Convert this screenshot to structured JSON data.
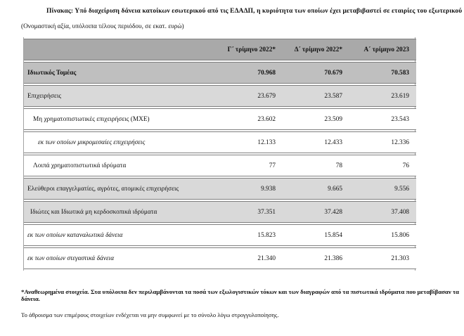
{
  "title": "Πίνακας: Υπό διαχείριση δάνεια κατοίκων εσωτερικού από τις ΕΔΑΔΠ, η κυριότητα των οποίων έχει μεταβιβαστεί σε εταιρίες του εξωτερικού",
  "subtitle": "(Ονομαστική αξία, υπόλοιπα τέλους περιόδου, σε εκατ. ευρώ)",
  "table": {
    "columns": [
      "Γ΄ τρίμηνο 2022*",
      "Δ΄ τρίμηνο 2022*",
      "Α΄ τρίμηνο 2023"
    ],
    "rows": [
      {
        "label": "Ιδιωτικός Τομέας",
        "values": [
          "70.968",
          "70.679",
          "70.583"
        ]
      },
      {
        "label": "Επιχειρήσεις",
        "values": [
          "23.679",
          "23.587",
          "23.619"
        ]
      },
      {
        "label": "Μη χρηματοπιστωτικές επιχειρήσεις (ΜΧΕ)",
        "values": [
          "23.602",
          "23.509",
          "23.543"
        ]
      },
      {
        "label": "εκ των οποίων μικρομεσαίες επιχειρήσεις",
        "values": [
          "12.133",
          "12.433",
          "12.336"
        ]
      },
      {
        "label": "Λοιπά χρηματοπιστωτικά ιδρύματα",
        "values": [
          "77",
          "78",
          "76"
        ]
      },
      {
        "label": "Ελεύθεροι επαγγελματίες, αγρότες, ατομικές επιχειρήσεις",
        "values": [
          "9.938",
          "9.665",
          "9.556"
        ]
      },
      {
        "label": "Ιδιώτες και Ιδιωτικά μη κερδοσκοπικά ιδρύματα",
        "values": [
          "37.351",
          "37.428",
          "37.408"
        ]
      },
      {
        "label": "εκ των οποίων καταναλωτικά δάνεια",
        "values": [
          "15.823",
          "15.854",
          "15.806"
        ]
      },
      {
        "label": "εκ των οποίων στεγαστικά δάνεια",
        "values": [
          "21.340",
          "21.386",
          "21.303"
        ]
      }
    ]
  },
  "footnotes": [
    "*Αναθεωρημένα στοιχεία. Στα υπόλοιπα δεν περιλαμβάνονται τα ποσά των εξωλογιστικών τόκων και των διαγραφών από τα πιστωτικά ιδρύματα που μεταβίβασαν τα δάνεια.",
    "Το άθροισμα των επιμέρους στοιχείων ενδέχεται να μην συμφωνεί με το σύνολο λόγω στρογγυλοποίησης."
  ],
  "colors": {
    "header_bg": "#a9a9a9",
    "total_row_bg": "#bfbfbf",
    "shaded_row_bg": "#d9d9d9",
    "row_border": "#7f7f7f"
  }
}
